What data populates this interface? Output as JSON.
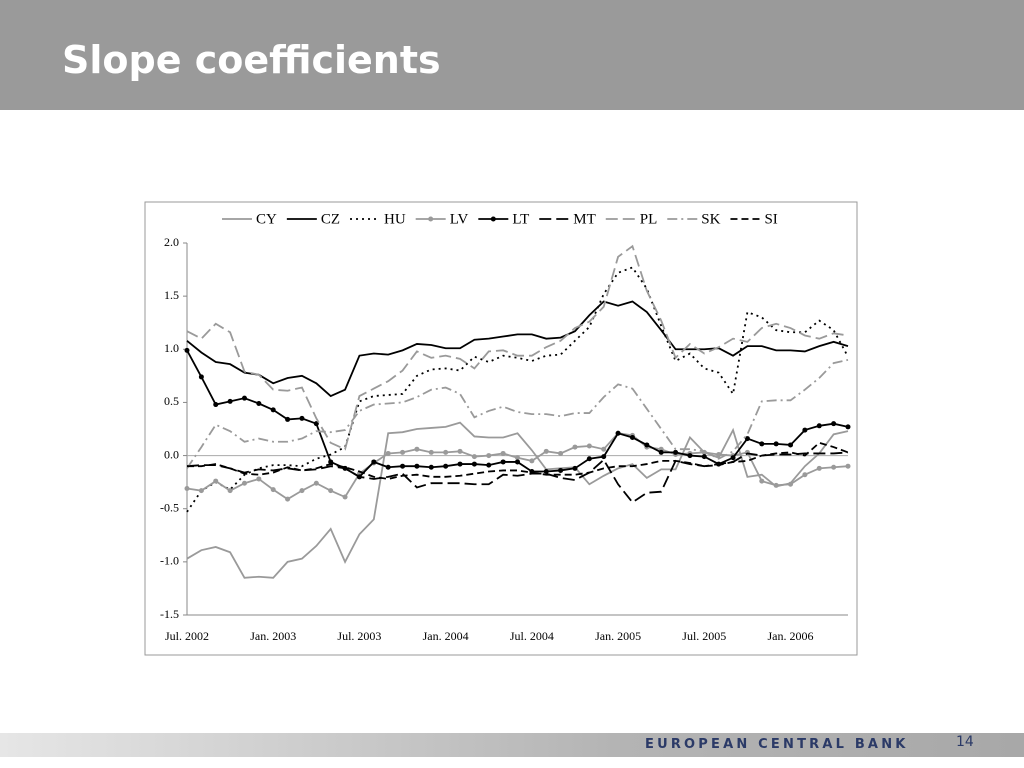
{
  "header": {
    "title": "Slope coefficients"
  },
  "footer": {
    "organization": "EUROPEAN CENTRAL BANK",
    "page": "14"
  },
  "chart_data": {
    "type": "line",
    "categories": [
      "Jul. 2002",
      null,
      null,
      null,
      null,
      null,
      "Jan. 2003",
      null,
      null,
      null,
      null,
      null,
      "Jul. 2003",
      null,
      null,
      null,
      null,
      null,
      "Jan. 2004",
      null,
      null,
      null,
      null,
      null,
      "Jul. 2004",
      null,
      null,
      null,
      null,
      null,
      "Jan. 2005",
      null,
      null,
      null,
      null,
      null,
      "Jul. 2005",
      null,
      null,
      null,
      null,
      null,
      "Jan. 2006",
      null,
      null,
      null,
      null
    ],
    "ylim": [
      -1.5,
      2.0
    ],
    "yticks": [
      {
        "value": -1.5,
        "label": "-1.5"
      },
      {
        "value": -1.0,
        "label": "-1.0"
      },
      {
        "value": -0.5,
        "label": "-0.5"
      },
      {
        "value": 0,
        "label": "0.0"
      },
      {
        "value": 0.5,
        "label": "0.5"
      },
      {
        "value": 1.0,
        "label": "1.0"
      },
      {
        "value": 1.5,
        "label": "1.5"
      },
      {
        "value": 2.0,
        "label": "2.0"
      }
    ],
    "legend": "top",
    "series": [
      {
        "name": "CY",
        "color": "#9a9a9a",
        "dash": "solid",
        "marker": false,
        "values": [
          -0.97,
          -0.89,
          -0.86,
          -0.91,
          -1.15,
          -1.14,
          -1.15,
          -1.0,
          -0.97,
          -0.85,
          -0.69,
          -1.0,
          -0.74,
          -0.6,
          0.21,
          0.22,
          0.25,
          0.26,
          0.27,
          0.31,
          0.18,
          0.17,
          0.17,
          0.21,
          0.05,
          -0.13,
          -0.12,
          -0.11,
          -0.27,
          -0.19,
          -0.12,
          -0.08,
          -0.21,
          -0.13,
          -0.13,
          0.17,
          0.03,
          -0.02,
          0.24,
          -0.2,
          -0.18,
          -0.29,
          -0.26,
          -0.1,
          0.02,
          0.2,
          0.23
        ]
      },
      {
        "name": "CZ",
        "color": "#000000",
        "dash": "solid",
        "marker": false,
        "values": [
          1.08,
          0.97,
          0.88,
          0.86,
          0.78,
          0.76,
          0.68,
          0.73,
          0.75,
          0.68,
          0.56,
          0.62,
          0.94,
          0.96,
          0.95,
          0.99,
          1.05,
          1.04,
          1.01,
          1.01,
          1.09,
          1.1,
          1.12,
          1.14,
          1.14,
          1.1,
          1.11,
          1.17,
          1.32,
          1.45,
          1.41,
          1.45,
          1.35,
          1.18,
          1.0,
          1.0,
          1.0,
          1.01,
          0.94,
          1.03,
          1.03,
          0.99,
          0.99,
          0.98,
          1.03,
          1.07,
          1.03
        ]
      },
      {
        "name": "HU",
        "color": "#000000",
        "dash": "dotted",
        "marker": false,
        "values": [
          -0.53,
          -0.33,
          -0.25,
          -0.32,
          -0.18,
          -0.12,
          -0.09,
          -0.09,
          -0.1,
          -0.03,
          0.01,
          0.08,
          0.51,
          0.56,
          0.57,
          0.58,
          0.75,
          0.81,
          0.82,
          0.8,
          0.93,
          0.88,
          0.94,
          0.92,
          0.89,
          0.94,
          0.95,
          1.08,
          1.21,
          1.52,
          1.72,
          1.77,
          1.57,
          1.22,
          0.89,
          0.96,
          0.82,
          0.78,
          0.58,
          1.35,
          1.3,
          1.18,
          1.16,
          1.16,
          1.27,
          1.18,
          0.93
        ]
      },
      {
        "name": "LV",
        "color": "#9a9a9a",
        "dash": "solid",
        "marker": true,
        "values": [
          -0.31,
          -0.33,
          -0.24,
          -0.33,
          -0.26,
          -0.22,
          -0.32,
          -0.41,
          -0.33,
          -0.26,
          -0.33,
          -0.39,
          -0.17,
          -0.07,
          0.02,
          0.03,
          0.06,
          0.03,
          0.03,
          0.04,
          -0.01,
          0.0,
          0.02,
          -0.02,
          -0.05,
          0.04,
          0.02,
          0.08,
          0.09,
          0.06,
          0.21,
          0.19,
          0.08,
          0.06,
          0.01,
          0.02,
          0.03,
          0.01,
          0.0,
          0.03,
          -0.24,
          -0.28,
          -0.27,
          -0.18,
          -0.12,
          -0.11,
          -0.1
        ]
      },
      {
        "name": "LT",
        "color": "#000000",
        "dash": "solid",
        "marker": true,
        "values": [
          0.99,
          0.74,
          0.48,
          0.51,
          0.54,
          0.49,
          0.43,
          0.34,
          0.35,
          0.3,
          -0.06,
          -0.12,
          -0.2,
          -0.06,
          -0.11,
          -0.1,
          -0.1,
          -0.11,
          -0.1,
          -0.08,
          -0.08,
          -0.09,
          -0.06,
          -0.06,
          -0.15,
          -0.15,
          -0.14,
          -0.12,
          -0.03,
          -0.01,
          0.21,
          0.17,
          0.1,
          0.03,
          0.03,
          0.0,
          -0.01,
          -0.08,
          -0.02,
          0.16,
          0.11,
          0.11,
          0.1,
          0.24,
          0.28,
          0.3,
          0.27
        ]
      },
      {
        "name": "MT",
        "color": "#000000",
        "dash": "longdash",
        "marker": false,
        "values": [
          -0.1,
          -0.09,
          -0.09,
          -0.12,
          -0.16,
          -0.13,
          -0.14,
          -0.12,
          -0.14,
          -0.13,
          -0.1,
          -0.12,
          -0.2,
          -0.22,
          -0.2,
          -0.17,
          -0.3,
          -0.26,
          -0.26,
          -0.26,
          -0.27,
          -0.27,
          -0.18,
          -0.19,
          -0.17,
          -0.17,
          -0.21,
          -0.23,
          -0.16,
          -0.04,
          -0.27,
          -0.44,
          -0.35,
          -0.34,
          -0.05,
          -0.08,
          -0.1,
          -0.08,
          -0.06,
          0.02,
          0.0,
          0.01,
          0.01,
          0.02,
          0.02,
          0.02,
          0.03
        ]
      },
      {
        "name": "PL",
        "color": "#9a9a9a",
        "dash": "longdash",
        "marker": false,
        "values": [
          1.17,
          1.1,
          1.24,
          1.16,
          0.79,
          0.76,
          0.62,
          0.61,
          0.64,
          0.35,
          0.12,
          0.06,
          0.56,
          0.63,
          0.7,
          0.8,
          0.98,
          0.92,
          0.94,
          0.91,
          0.82,
          0.98,
          0.99,
          0.94,
          0.94,
          1.02,
          1.08,
          1.2,
          1.26,
          1.4,
          1.87,
          1.97,
          1.55,
          1.27,
          0.92,
          1.05,
          0.96,
          1.02,
          1.1,
          1.07,
          1.2,
          1.24,
          1.2,
          1.13,
          1.1,
          1.15,
          1.13
        ]
      },
      {
        "name": "SK",
        "color": "#9a9a9a",
        "dash": "dashdot",
        "marker": false,
        "values": [
          -0.12,
          0.08,
          0.29,
          0.23,
          0.13,
          0.16,
          0.13,
          0.13,
          0.16,
          0.23,
          0.22,
          0.24,
          0.42,
          0.48,
          0.49,
          0.5,
          0.55,
          0.62,
          0.64,
          0.58,
          0.36,
          0.42,
          0.46,
          0.41,
          0.39,
          0.39,
          0.37,
          0.4,
          0.4,
          0.55,
          0.67,
          0.63,
          0.44,
          0.25,
          0.06,
          0.06,
          0.04,
          -0.03,
          0.04,
          0.2,
          0.51,
          0.52,
          0.52,
          0.62,
          0.73,
          0.87,
          0.9
        ]
      },
      {
        "name": "SI",
        "color": "#000000",
        "dash": "dashed",
        "marker": false,
        "values": [
          -0.1,
          -0.1,
          -0.08,
          -0.12,
          -0.17,
          -0.18,
          -0.16,
          -0.11,
          -0.14,
          -0.12,
          -0.08,
          -0.11,
          -0.15,
          -0.2,
          -0.22,
          -0.19,
          -0.18,
          -0.2,
          -0.2,
          -0.19,
          -0.17,
          -0.15,
          -0.14,
          -0.14,
          -0.16,
          -0.18,
          -0.18,
          -0.18,
          -0.16,
          -0.12,
          -0.1,
          -0.1,
          -0.08,
          -0.05,
          -0.05,
          -0.07,
          -0.1,
          -0.09,
          -0.06,
          -0.05,
          0.0,
          0.02,
          0.03,
          0.0,
          0.12,
          0.08,
          0.03
        ]
      }
    ]
  }
}
